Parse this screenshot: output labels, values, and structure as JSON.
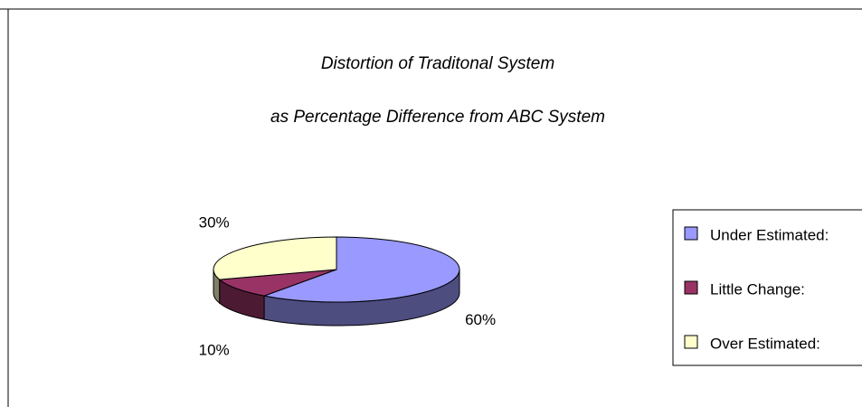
{
  "chart_data": {
    "type": "pie",
    "title": "Distortion of Traditonal System",
    "subtitle": "as Percentage Difference from ABC System",
    "categories": [
      "Under Estimated:",
      "Little Change:",
      "Over Estimated:"
    ],
    "values": [
      60,
      10,
      30
    ],
    "value_labels": [
      "60%",
      "10%",
      "30%"
    ],
    "colors": [
      "#9999ff",
      "#993366",
      "#ffffcc"
    ],
    "legend": "right"
  }
}
